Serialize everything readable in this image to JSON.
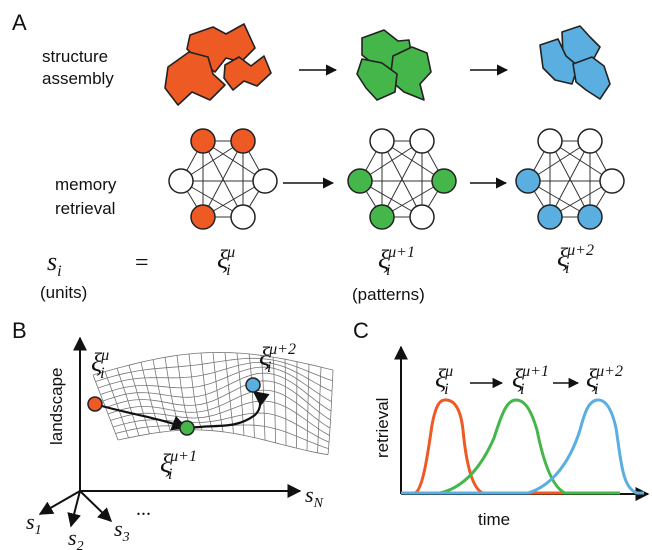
{
  "panel_a": {
    "letter": "A",
    "row1_label": [
      "structure",
      "assembly"
    ],
    "row2_label": [
      "memory",
      "retrieval"
    ],
    "equation": {
      "lhs": "s",
      "lhs_sub": "i",
      "equals": "="
    },
    "patterns": [
      {
        "sym": "ξ",
        "sub": "i",
        "sup": "μ"
      },
      {
        "sym": "ξ",
        "sub": "i",
        "sup": "μ+1"
      },
      {
        "sym": "ξ",
        "sub": "i",
        "sup": "μ+2"
      }
    ],
    "units_label": "(units)",
    "patterns_label": "(patterns)",
    "colors": {
      "orange": "#ee5a24",
      "green": "#45b649",
      "blue": "#5aaee0"
    }
  },
  "panel_b": {
    "letter": "B",
    "ylabel": "landscape",
    "xlabel": {
      "sym": "s",
      "sub": "N"
    },
    "axis_labels": [
      {
        "sym": "s",
        "sub": "1"
      },
      {
        "sym": "s",
        "sub": "2"
      },
      {
        "sym": "s",
        "sub": "3"
      }
    ],
    "ellipsis": "...",
    "states": [
      {
        "sym": "ξ",
        "sub": "i",
        "sup": "μ"
      },
      {
        "sym": "ξ",
        "sub": "i",
        "sup": "μ+1"
      },
      {
        "sym": "ξ",
        "sub": "i",
        "sup": "μ+2"
      }
    ]
  },
  "panel_c": {
    "letter": "C",
    "ylabel": "retrieval",
    "xlabel": "time",
    "states": [
      {
        "sym": "ξ",
        "sub": "i",
        "sup": "μ"
      },
      {
        "sym": "ξ",
        "sub": "i",
        "sup": "μ+1"
      },
      {
        "sym": "ξ",
        "sub": "i",
        "sup": "μ+2"
      }
    ]
  }
}
